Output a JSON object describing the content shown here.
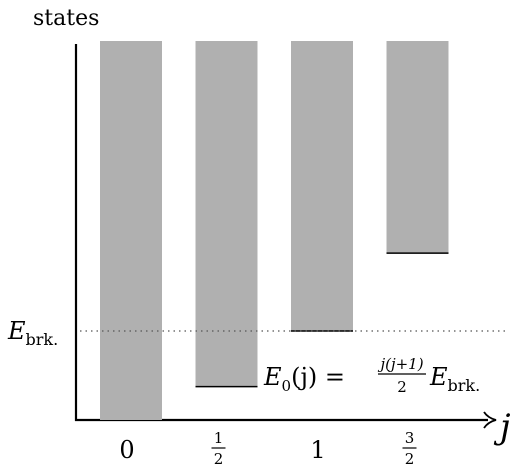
{
  "chart_data": {
    "type": "bar",
    "ylabel": "states",
    "xlabel": "j",
    "categories": [
      {
        "label": "0",
        "num": "",
        "den": ""
      },
      {
        "label": "",
        "num": "1",
        "den": "2"
      },
      {
        "label": "1",
        "num": "",
        "den": ""
      },
      {
        "label": "",
        "num": "3",
        "den": "2"
      }
    ],
    "bars": [
      {
        "j": 0,
        "bottom": 0
      },
      {
        "j": 0.5,
        "bottom": 0.75
      },
      {
        "j": 1,
        "bottom": 2
      },
      {
        "j": 1.5,
        "bottom": 3.75
      }
    ],
    "threshold": {
      "label_main": "E",
      "label_sub": "brk.",
      "value": 2
    },
    "formula": {
      "lhs": "E",
      "lhs_sub": "0",
      "lhs_arg": "(j) =",
      "frac_num": "j(j+1)",
      "frac_den": "2",
      "rhs_main": "E",
      "rhs_sub": "brk."
    },
    "colors": {
      "bar": "#b0b0b0",
      "axis": "#000000",
      "threshold_line": "#555555"
    }
  }
}
